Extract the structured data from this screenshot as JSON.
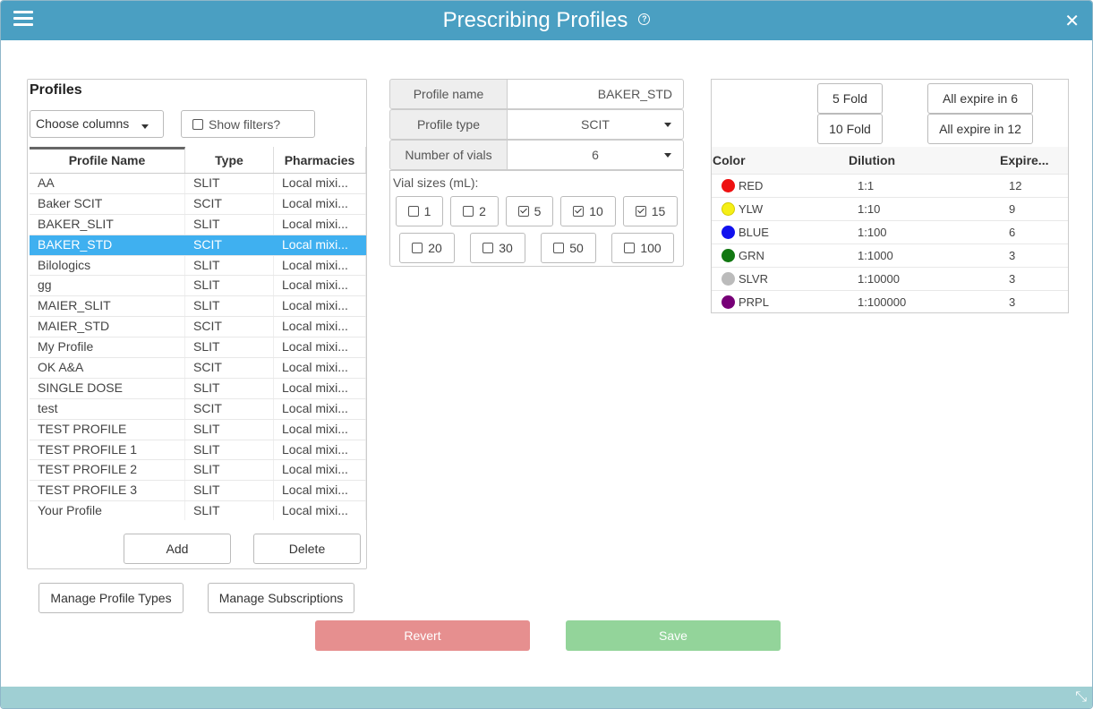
{
  "window": {
    "title": "Prescribing Profiles",
    "help_glyph": "?",
    "close_glyph": "✕",
    "resize_glyph": "⤡"
  },
  "profiles": {
    "heading": "Profiles",
    "choose_columns": "Choose columns",
    "show_filters": "Show filters?",
    "columns": [
      "Profile Name",
      "Type",
      "Pharmacies"
    ],
    "rows": [
      [
        "AA",
        "SLIT",
        "Local mixi..."
      ],
      [
        "Baker SCIT",
        "SCIT",
        "Local mixi..."
      ],
      [
        "BAKER_SLIT",
        "SLIT",
        "Local mixi..."
      ],
      [
        "BAKER_STD",
        "SCIT",
        "Local mixi..."
      ],
      [
        "Bilologics",
        "SLIT",
        "Local mixi..."
      ],
      [
        "gg",
        "SLIT",
        "Local mixi..."
      ],
      [
        "MAIER_SLIT",
        "SLIT",
        "Local mixi..."
      ],
      [
        "MAIER_STD",
        "SCIT",
        "Local mixi..."
      ],
      [
        "My Profile",
        "SLIT",
        "Local mixi..."
      ],
      [
        "OK A&A",
        "SCIT",
        "Local mixi..."
      ],
      [
        "SINGLE DOSE",
        "SLIT",
        "Local mixi..."
      ],
      [
        "test",
        "SCIT",
        "Local mixi..."
      ],
      [
        "TEST PROFILE",
        "SLIT",
        "Local mixi..."
      ],
      [
        "TEST PROFILE 1",
        "SLIT",
        "Local mixi..."
      ],
      [
        "TEST PROFILE 2",
        "SLIT",
        "Local mixi..."
      ],
      [
        "TEST PROFILE 3",
        "SLIT",
        "Local mixi..."
      ],
      [
        "Your Profile",
        "SLIT",
        "Local mixi..."
      ]
    ],
    "selected_row": "BAKER_STD",
    "add_label": "Add",
    "delete_label": "Delete"
  },
  "manage": {
    "profile_types": "Manage Profile Types",
    "subscriptions": "Manage Subscriptions"
  },
  "form": {
    "profile_name_label": "Profile name",
    "profile_name_value": "BAKER_STD",
    "profile_type_label": "Profile type",
    "profile_type_value": "SCIT",
    "num_vials_label": "Number of vials",
    "num_vials_value": "6",
    "vial_sizes_label": "Vial sizes (mL):",
    "vial_sizes": [
      {
        "label": "1",
        "checked": false
      },
      {
        "label": "2",
        "checked": false
      },
      {
        "label": "5",
        "checked": true
      },
      {
        "label": "10",
        "checked": true
      },
      {
        "label": "15",
        "checked": true
      },
      {
        "label": "20",
        "checked": false
      },
      {
        "label": "30",
        "checked": false
      },
      {
        "label": "50",
        "checked": false
      },
      {
        "label": "100",
        "checked": false
      }
    ]
  },
  "dilutions": {
    "five_fold": "5 Fold",
    "ten_fold": "10 Fold",
    "expire_6": "All expire in 6",
    "expire_12": "All expire in 12",
    "columns": [
      "Color",
      "Dilution",
      "Expire..."
    ],
    "rows": [
      {
        "color_name": "RED",
        "color": "#ee1111",
        "dilution": "1:1",
        "expire": "12"
      },
      {
        "color_name": "YLW",
        "color": "#f5ef16",
        "dilution": "1:10",
        "expire": "9"
      },
      {
        "color_name": "BLUE",
        "color": "#1111ee",
        "dilution": "1:100",
        "expire": "6"
      },
      {
        "color_name": "GRN",
        "color": "#117711",
        "dilution": "1:1000",
        "expire": "3"
      },
      {
        "color_name": "SLVR",
        "color": "#bbbbbb",
        "dilution": "1:10000",
        "expire": "3"
      },
      {
        "color_name": "PRPL",
        "color": "#770077",
        "dilution": "1:100000",
        "expire": "3"
      }
    ]
  },
  "actions": {
    "revert": "Revert",
    "save": "Save",
    "revert_color": "#e68f8f",
    "save_color": "#93d49a"
  },
  "colors": {
    "titlebar": "#4a9fc2",
    "footer": "#9fcfd3",
    "selection": "#3fb0f0"
  }
}
